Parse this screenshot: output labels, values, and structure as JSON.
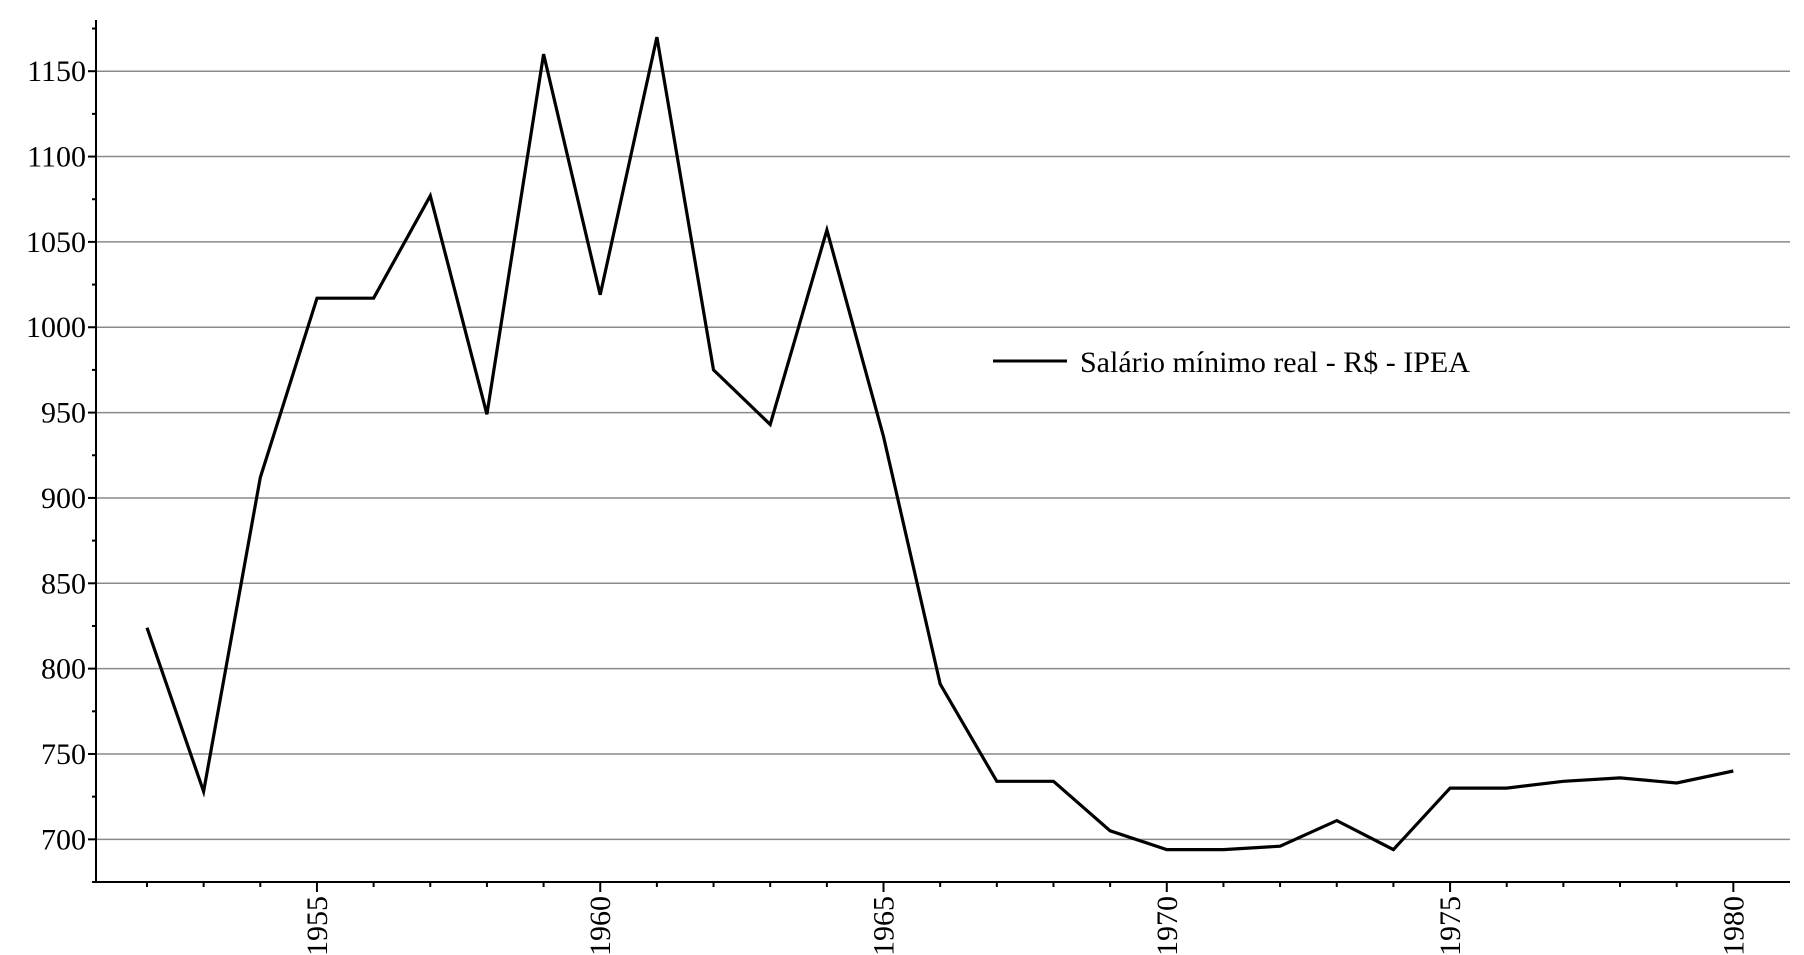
{
  "chart_data": {
    "type": "line",
    "title": "",
    "xlabel": "",
    "ylabel": "",
    "xlim": [
      1951.1,
      1981.0
    ],
    "ylim": [
      675,
      1180
    ],
    "x_ticks": [
      1955,
      1960,
      1965,
      1970,
      1975,
      1980
    ],
    "y_ticks": [
      700,
      750,
      800,
      850,
      900,
      950,
      1000,
      1050,
      1100,
      1150
    ],
    "grid": "horizontal",
    "legend": "inside-right",
    "line_color": "#000000",
    "series": [
      {
        "name": "Salário mínimo real - R$ - IPEA",
        "x": [
          1952,
          1953,
          1954,
          1955,
          1956,
          1957,
          1958,
          1959,
          1960,
          1961,
          1962,
          1963,
          1964,
          1965,
          1966,
          1967,
          1968,
          1969,
          1970,
          1971,
          1972,
          1973,
          1974,
          1975,
          1976,
          1977,
          1978,
          1979,
          1980
        ],
        "values": [
          824,
          728,
          912,
          1017,
          1017,
          1077,
          949,
          1160,
          1019,
          1170,
          975,
          943,
          1057,
          936,
          791,
          734,
          734,
          705,
          694,
          694,
          696,
          711,
          694,
          730,
          730,
          734,
          736,
          733,
          740
        ]
      }
    ]
  }
}
